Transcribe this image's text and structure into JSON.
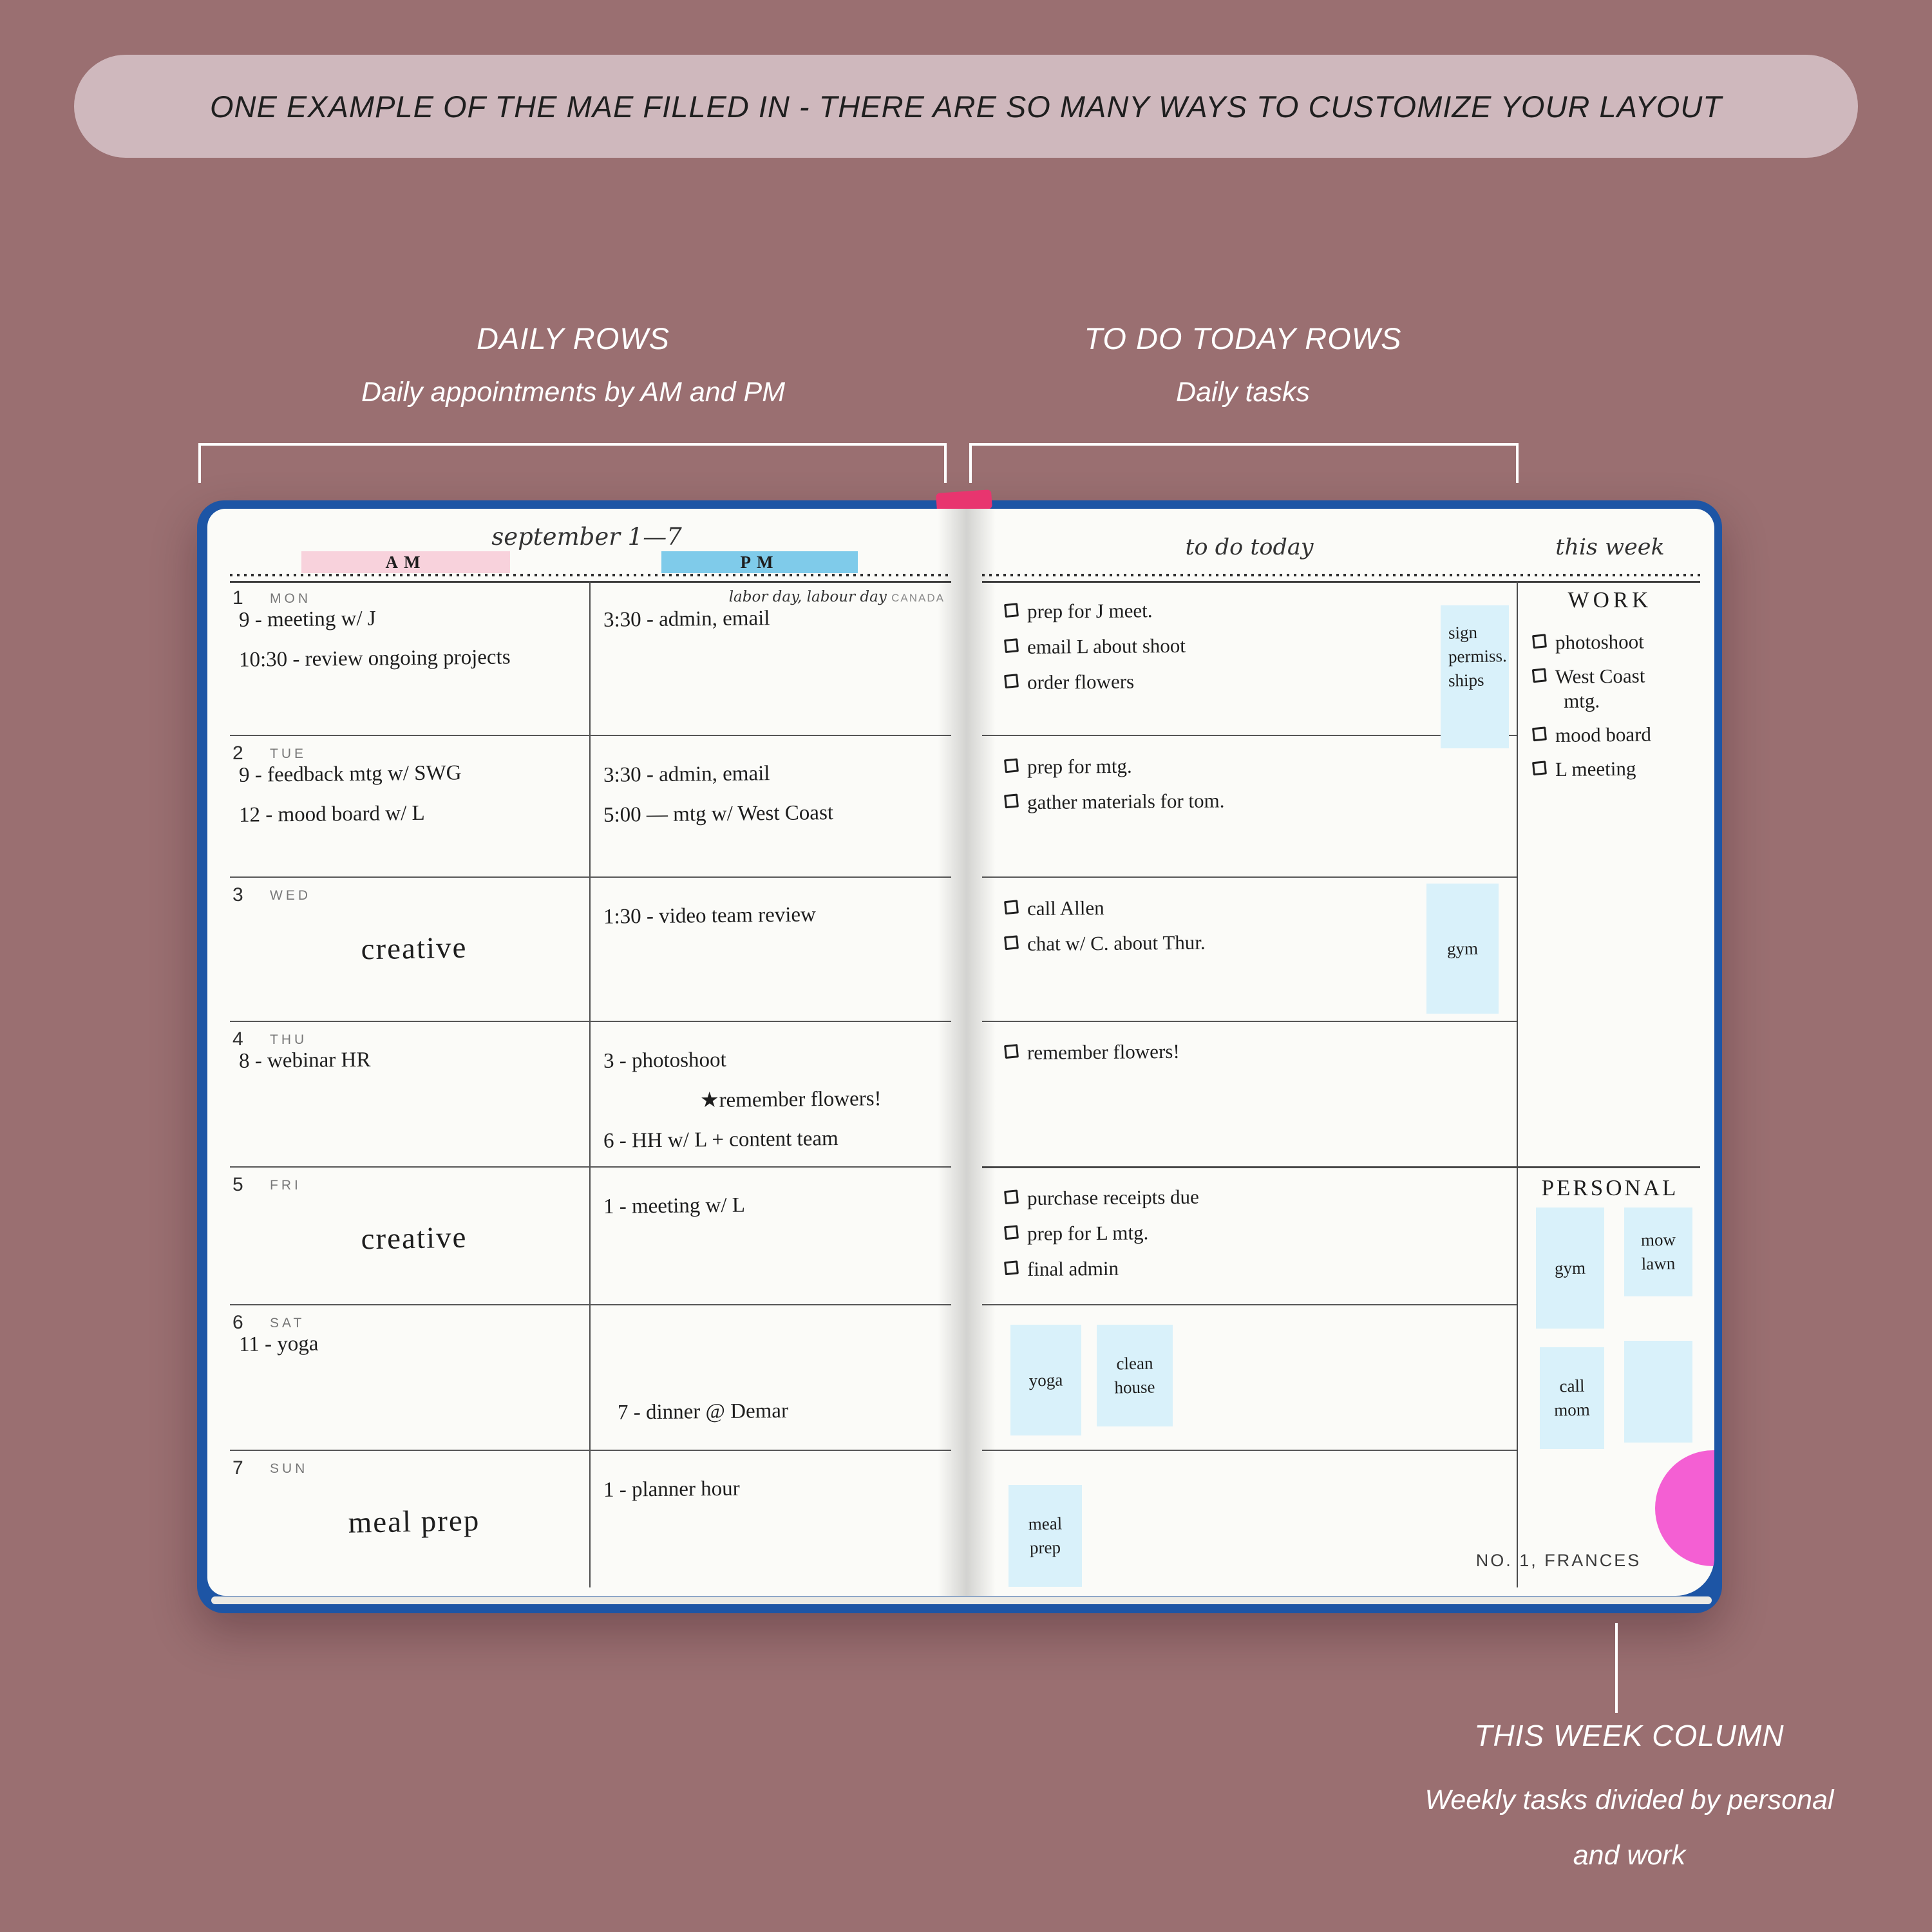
{
  "banner": {
    "text": "ONE EXAMPLE OF THE MAE FILLED IN - THERE ARE SO MANY WAYS TO CUSTOMIZE YOUR LAYOUT"
  },
  "annotations": {
    "daily_rows": {
      "title": "DAILY ROWS",
      "subtitle": "Daily appointments by AM and PM"
    },
    "todo_rows": {
      "title": "TO DO TODAY ROWS",
      "subtitle": "Daily tasks"
    },
    "this_week": {
      "title": "THIS WEEK COLUMN",
      "subtitle_line1": "Weekly tasks divided by personal",
      "subtitle_line2": "and work"
    }
  },
  "planner": {
    "left_page": {
      "week_header": "september 1—7",
      "am_label": "AM",
      "pm_label": "PM",
      "holiday_note": "labor day, labour day",
      "holiday_region": "CANADA",
      "days": [
        {
          "num": "1",
          "name": "MON",
          "am": [
            {
              "text": "9 - meeting w/ J"
            },
            {
              "text": "10:30 - review ongoing projects"
            }
          ],
          "pm": [
            {
              "text": "3:30 - admin, email"
            }
          ]
        },
        {
          "num": "2",
          "name": "TUE",
          "am": [
            {
              "text": "9 - feedback mtg w/ SWG"
            },
            {
              "text": "12 - mood board w/ L"
            }
          ],
          "pm": [
            {
              "text": "3:30 - admin, email"
            },
            {
              "text": "5:00 — mtg w/ West Coast"
            }
          ]
        },
        {
          "num": "3",
          "name": "WED",
          "am": [
            {
              "text": "creative",
              "style": "big-center"
            }
          ],
          "pm": [
            {
              "text": "1:30 - video team review"
            }
          ]
        },
        {
          "num": "4",
          "name": "THU",
          "am": [
            {
              "text": "8 - webinar HR"
            }
          ],
          "pm": [
            {
              "text": "3 - photoshoot"
            },
            {
              "text": "★remember flowers!",
              "style": "indent"
            },
            {
              "text": "6 - HH w/ L + content team"
            }
          ]
        },
        {
          "num": "5",
          "name": "FRI",
          "am": [
            {
              "text": "creative",
              "style": "big-center"
            }
          ],
          "pm": [
            {
              "text": "1 - meeting w/ L"
            }
          ]
        },
        {
          "num": "6",
          "name": "SAT",
          "am": [
            {
              "text": "11 - yoga"
            }
          ],
          "pm": [
            {
              "text": "7 - dinner @ Demar",
              "style": "low"
            }
          ]
        },
        {
          "num": "7",
          "name": "SUN",
          "am": [
            {
              "text": "meal prep",
              "style": "big-center"
            }
          ],
          "pm": [
            {
              "text": "1 - planner hour"
            }
          ]
        }
      ]
    },
    "right_page": {
      "todo_header": "to do today",
      "week_header": "this week",
      "todo_rows": [
        {
          "tasks": [
            "prep for J meet.",
            "email L about shoot",
            "order flowers"
          ],
          "stickies": [
            {
              "lines": [
                "sign",
                "permiss.",
                "ships"
              ],
              "align": "top"
            }
          ]
        },
        {
          "tasks": [
            "prep for mtg.",
            "gather materials for tom."
          ],
          "stickies": []
        },
        {
          "tasks": [
            "call Allen",
            "chat w/ C. about Thur."
          ],
          "stickies": [
            {
              "lines": [
                "gym"
              ]
            }
          ]
        },
        {
          "tasks": [
            "remember flowers!"
          ],
          "stickies": []
        },
        {
          "tasks": [
            "purchase receipts due",
            "prep for L mtg.",
            "final admin"
          ],
          "stickies": []
        },
        {
          "tasks": [],
          "stickies": [
            {
              "lines": [
                "yoga"
              ]
            },
            {
              "lines": [
                "clean",
                "house"
              ]
            }
          ]
        },
        {
          "tasks": [],
          "stickies": [
            {
              "lines": [
                "meal",
                "prep"
              ]
            }
          ]
        }
      ],
      "work": {
        "title": "WORK",
        "items": [
          [
            "photoshoot"
          ],
          [
            "West Coast",
            "mtg."
          ],
          [
            "mood board"
          ],
          [
            "L meeting"
          ]
        ]
      },
      "personal": {
        "title": "PERSONAL",
        "stickies": [
          {
            "lines": [
              "gym"
            ]
          },
          {
            "lines": [
              "mow",
              "lawn"
            ]
          },
          {
            "lines": [
              "call",
              "mom"
            ]
          },
          {
            "lines": []
          }
        ]
      },
      "footer": "NO. 1, FRANCES"
    }
  },
  "colors": {
    "background": "#9a6f71",
    "banner_bg": "#cfb8bd",
    "cover_blue": "#1d55a5",
    "page_white": "#fbfbf8",
    "tab_pink": "#f8d2dc",
    "tab_blue": "#7fcbea",
    "sticky_blue": "#d9f1fa",
    "accent_pink": "#f45fd3",
    "ribbon_pink": "#e8356f",
    "annotation_text": "#ffffff"
  }
}
